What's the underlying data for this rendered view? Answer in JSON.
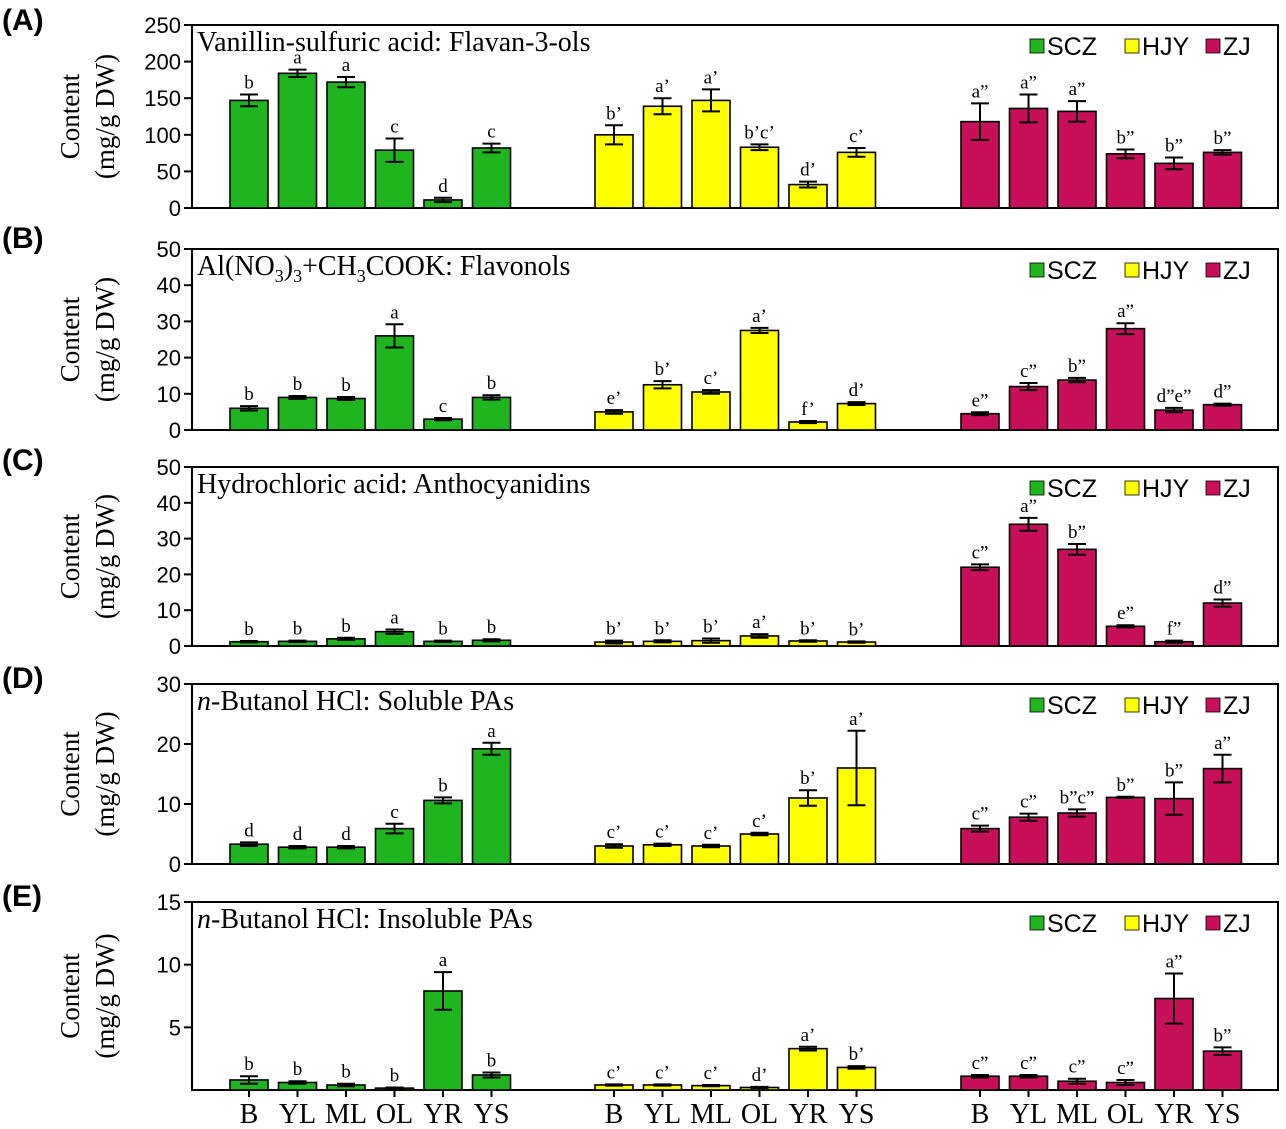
{
  "figure": {
    "x_categories": [
      "B",
      "YL",
      "ML",
      "OL",
      "YR",
      "YS"
    ],
    "legend": [
      {
        "name": "SCZ",
        "color": "#1fb51f"
      },
      {
        "name": "HJY",
        "color": "#ffff00"
      },
      {
        "name": "ZJ",
        "color": "#c8105a"
      }
    ],
    "ylabel_line1": "Content",
    "ylabel_line2": "(mg/g DW)"
  },
  "chart_data": [
    {
      "panel_label": "(A)",
      "type": "bar",
      "title": "Vanillin-sulfuric acid: Flavan-3-ols",
      "ylim": [
        0,
        250
      ],
      "yticks": [
        0,
        50,
        100,
        150,
        200,
        250
      ],
      "categories": [
        "B",
        "YL",
        "ML",
        "OL",
        "YR",
        "YS"
      ],
      "series": [
        {
          "name": "SCZ",
          "values": [
            147,
            184,
            172,
            79,
            11,
            82
          ],
          "errors": [
            8,
            5,
            7,
            16,
            3,
            6
          ],
          "labels": [
            "b",
            "a",
            "a",
            "c",
            "d",
            "c"
          ]
        },
        {
          "name": "HJY",
          "values": [
            100,
            139,
            147,
            83,
            32,
            76
          ],
          "errors": [
            13,
            11,
            15,
            4,
            4,
            6
          ],
          "labels": [
            "b’",
            "a’",
            "a’",
            "b’c’",
            "d’",
            "c’"
          ]
        },
        {
          "name": "ZJ",
          "values": [
            118,
            136,
            132,
            74,
            61,
            76
          ],
          "errors": [
            25,
            19,
            14,
            6,
            8,
            3
          ],
          "labels": [
            "a”",
            "a”",
            "a”",
            "b”",
            "b”",
            "b”"
          ]
        }
      ]
    },
    {
      "panel_label": "(B)",
      "type": "bar",
      "title": "Al(NO3)3+CH3COOK: Flavonols",
      "title_parts": [
        "Al(NO",
        "3",
        ")",
        "3",
        "+CH",
        "3",
        "COOK: Flavonols"
      ],
      "ylim": [
        0,
        50
      ],
      "yticks": [
        0,
        10,
        20,
        30,
        40,
        50
      ],
      "categories": [
        "B",
        "YL",
        "ML",
        "OL",
        "YR",
        "YS"
      ],
      "series": [
        {
          "name": "SCZ",
          "values": [
            6,
            9,
            8.7,
            26,
            3,
            9
          ],
          "errors": [
            0.6,
            0.4,
            0.4,
            3.2,
            0.3,
            0.6
          ],
          "labels": [
            "b",
            "b",
            "b",
            "a",
            "c",
            "b"
          ]
        },
        {
          "name": "HJY",
          "values": [
            5,
            12.5,
            10.5,
            27.5,
            2.2,
            7.3
          ],
          "errors": [
            0.5,
            1,
            0.5,
            0.7,
            0.3,
            0.4
          ],
          "labels": [
            "e’",
            "b’",
            "c’",
            "a’",
            "f’",
            "d’"
          ]
        },
        {
          "name": "ZJ",
          "values": [
            4.5,
            12,
            13.8,
            28,
            5.5,
            7
          ],
          "errors": [
            0.4,
            1,
            0.6,
            1.5,
            0.6,
            0.3
          ],
          "labels": [
            "e”",
            "c”",
            "b”",
            "a”",
            "d”e”",
            "d”"
          ]
        }
      ]
    },
    {
      "panel_label": "(C)",
      "type": "bar",
      "title": "Hydrochloric acid: Anthocyanidins",
      "ylim": [
        0,
        50
      ],
      "yticks": [
        0,
        10,
        20,
        30,
        40,
        50
      ],
      "categories": [
        "B",
        "YL",
        "ML",
        "OL",
        "YR",
        "YS"
      ],
      "series": [
        {
          "name": "SCZ",
          "values": [
            1.2,
            1.3,
            2,
            4,
            1.3,
            1.6
          ],
          "errors": [
            0.2,
            0.2,
            0.3,
            0.6,
            0.2,
            0.3
          ],
          "labels": [
            "b",
            "b",
            "b",
            "a",
            "b",
            "b"
          ]
        },
        {
          "name": "HJY",
          "values": [
            1.1,
            1.3,
            1.5,
            2.8,
            1.4,
            1.1
          ],
          "errors": [
            0.4,
            0.3,
            0.6,
            0.5,
            0.2,
            0.2
          ],
          "labels": [
            "b’",
            "b’",
            "b’",
            "a’",
            "b’",
            "b’"
          ]
        },
        {
          "name": "ZJ",
          "values": [
            22,
            34,
            27,
            5.5,
            1.2,
            12
          ],
          "errors": [
            0.8,
            1.8,
            1.5,
            0.3,
            0.3,
            1
          ],
          "labels": [
            "c”",
            "a”",
            "b”",
            "e”",
            "f”",
            "d”"
          ]
        }
      ]
    },
    {
      "panel_label": "(D)",
      "type": "bar",
      "title": "n-Butanol HCl: Soluble PAs",
      "title_italic": "n",
      "title_rest": "-Butanol HCl: Soluble PAs",
      "ylim": [
        0,
        30
      ],
      "yticks": [
        0,
        10,
        20,
        30
      ],
      "categories": [
        "B",
        "YL",
        "ML",
        "OL",
        "YR",
        "YS"
      ],
      "series": [
        {
          "name": "SCZ",
          "values": [
            3.3,
            2.8,
            2.8,
            5.9,
            10.6,
            19.2
          ],
          "errors": [
            0.3,
            0.2,
            0.2,
            0.8,
            0.5,
            1
          ],
          "labels": [
            "d",
            "d",
            "d",
            "c",
            "b",
            "a"
          ]
        },
        {
          "name": "HJY",
          "values": [
            3,
            3.2,
            3,
            5,
            11,
            16
          ],
          "errors": [
            0.3,
            0.2,
            0.2,
            0.2,
            1.3,
            6.2
          ],
          "labels": [
            "c’",
            "c’",
            "c’",
            "c’",
            "b’",
            "a’"
          ]
        },
        {
          "name": "ZJ",
          "values": [
            5.9,
            7.8,
            8.5,
            11.1,
            10.9,
            15.9
          ],
          "errors": [
            0.5,
            0.6,
            0.6,
            0.1,
            2.7,
            2.3
          ],
          "labels": [
            "c”",
            "c”",
            "b”c”",
            "b”",
            "b”",
            "a”"
          ]
        }
      ]
    },
    {
      "panel_label": "(E)",
      "type": "bar",
      "title": "n-Butanol HCl: Insoluble PAs",
      "title_italic": "n",
      "title_rest": "-Butanol HCl: Insoluble PAs",
      "ylim": [
        0,
        15
      ],
      "yticks": [
        5,
        10,
        15
      ],
      "categories": [
        "B",
        "YL",
        "ML",
        "OL",
        "YR",
        "YS"
      ],
      "series": [
        {
          "name": "SCZ",
          "values": [
            0.8,
            0.6,
            0.4,
            0.15,
            7.9,
            1.2
          ],
          "errors": [
            0.3,
            0.1,
            0.1,
            0.05,
            1.5,
            0.2
          ],
          "labels": [
            "b",
            "b",
            "b",
            "b",
            "a",
            "b"
          ]
        },
        {
          "name": "HJY",
          "values": [
            0.4,
            0.4,
            0.35,
            0.2,
            3.3,
            1.8
          ],
          "errors": [
            0.05,
            0.05,
            0.05,
            0.05,
            0.15,
            0.1
          ],
          "labels": [
            "c’",
            "c’",
            "c’",
            "d’",
            "a’",
            "b’"
          ]
        },
        {
          "name": "ZJ",
          "values": [
            1.1,
            1.1,
            0.7,
            0.6,
            7.3,
            3.1
          ],
          "errors": [
            0.1,
            0.1,
            0.2,
            0.2,
            2,
            0.3
          ],
          "labels": [
            "c”",
            "c”",
            "c”",
            "c”",
            "a”",
            "b”"
          ]
        }
      ]
    }
  ]
}
